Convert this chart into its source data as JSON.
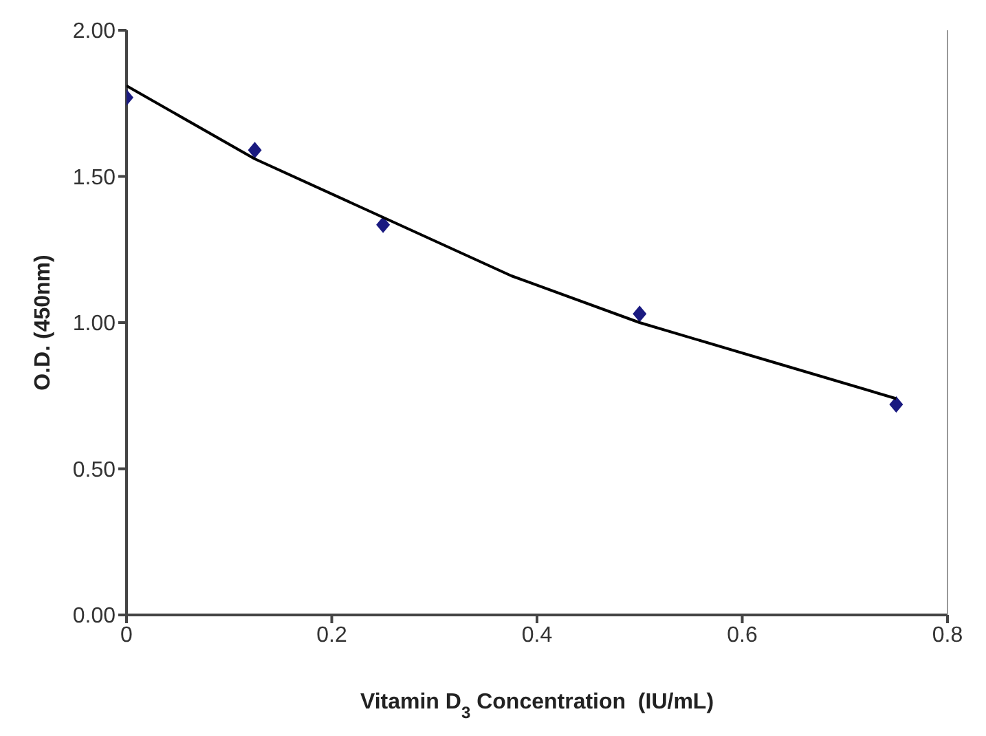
{
  "chart_data": {
    "type": "scatter",
    "xlabel": "Vitamin D$_{3}$ Concentration  (IU/mL)",
    "ylabel": "O.D. (450nm)",
    "x": [
      0,
      0.125,
      0.25,
      0.5,
      0.75
    ],
    "series": [
      {
        "color": "#1a1a80",
        "marker": "diamond",
        "values": [
          1.77,
          1.59,
          1.335,
          1.03,
          0.72
        ]
      },
      {
        "type": "line",
        "color": "#000000",
        "x": [
          0,
          0.125,
          0.25,
          0.375,
          0.5,
          0.625,
          0.75
        ],
        "values": [
          1.81,
          1.56,
          1.36,
          1.16,
          1.0,
          0.87,
          0.74
        ]
      }
    ],
    "xlim": [
      0,
      0.8
    ],
    "xticks": [
      0,
      0.2,
      0.4,
      0.6,
      0.8
    ],
    "ylim": [
      0,
      2
    ],
    "yticks": [
      {
        "value": 0,
        "label": "0.00"
      },
      {
        "value": 0.5,
        "label": "0.50"
      },
      {
        "value": 1,
        "label": "1.00"
      },
      {
        "value": 1.5,
        "label": "1.50"
      },
      {
        "value": 2,
        "label": "2.00"
      }
    ],
    "grid": false,
    "legend": false
  }
}
